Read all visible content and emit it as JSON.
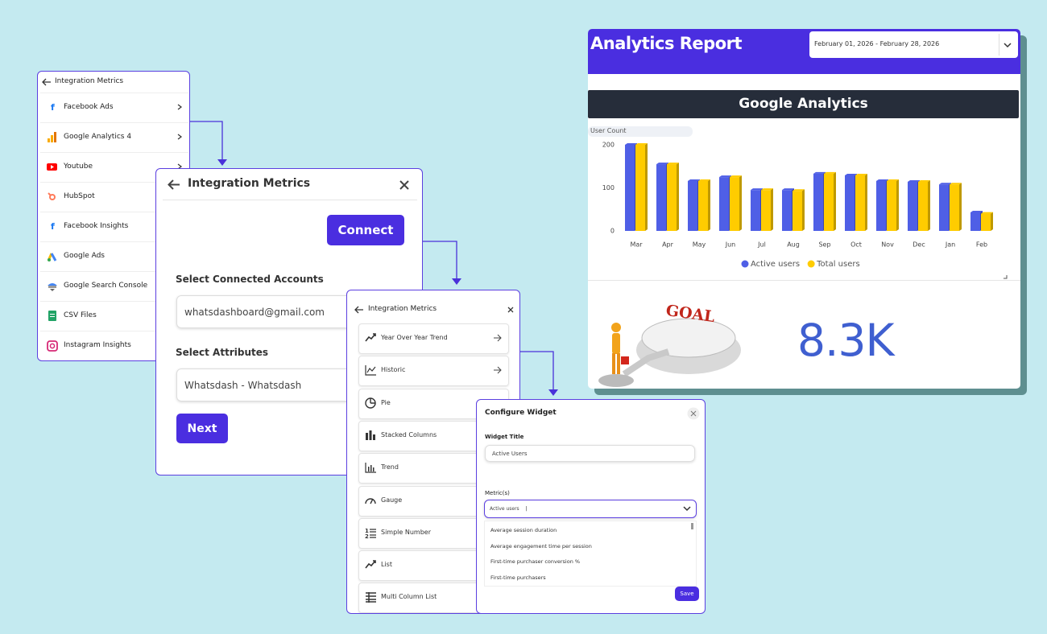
{
  "panel_sources": {
    "title": "Integration Metrics",
    "items": [
      "Facebook Ads",
      "Google Analytics 4",
      "Youtube",
      "HubSpot",
      "Facebook Insights",
      "Google Ads",
      "Google Search Console",
      "CSV Files",
      "Instagram Insights"
    ]
  },
  "panel_connect": {
    "title": "Integration Metrics",
    "connect_button": "Connect",
    "accounts_label": "Select Connected Accounts",
    "account": "whatsdashboard@gmail.com",
    "attributes_label": "Select Attributes",
    "attribute": "Whatsdash - Whatsdash",
    "next_button": "Next"
  },
  "panel_widgets": {
    "title": "Integration Metrics",
    "items": [
      "Year Over Year Trend",
      "Historic",
      "Pie",
      "Stacked Columns",
      "Trend",
      "Gauge",
      "Simple Number",
      "List",
      "Multi Column List"
    ]
  },
  "panel_configure": {
    "title": "Configure Widget",
    "widget_title_label": "Widget Title",
    "widget_title": "Active Users",
    "metrics_label": "Metric(s)",
    "metric_selected": "Active users",
    "options": [
      "Average session duration",
      "Average engagement time per session",
      "First-time purchaser conversion %",
      "First-time purchasers"
    ],
    "save_button": "Save"
  },
  "report": {
    "title": "Analytics Report",
    "date_range": "February 01, 2026 - February 28, 2026",
    "section_title": "Google Analytics",
    "goal_image_text": "GOAL",
    "kpi": "8.3K"
  },
  "chart_data": {
    "type": "bar",
    "y_label": "User Count",
    "categories": [
      "Mar",
      "Apr",
      "May",
      "Jun",
      "Jul",
      "Aug",
      "Sep",
      "Oct",
      "Nov",
      "Dec",
      "Jan",
      "Feb"
    ],
    "series": [
      {
        "name": "Active users",
        "color": "#4f5fe6",
        "values": [
          200,
          155,
          116,
          125,
          95,
          95,
          133,
          129,
          116,
          114,
          108,
          43
        ]
      },
      {
        "name": "Total users",
        "color": "#ffcc00",
        "values": [
          200,
          155,
          116,
          125,
          95,
          93,
          133,
          129,
          116,
          114,
          108,
          40
        ]
      }
    ],
    "ylim": [
      0,
      200
    ],
    "yticks": [
      0,
      100,
      200
    ],
    "legend": "bottom"
  }
}
